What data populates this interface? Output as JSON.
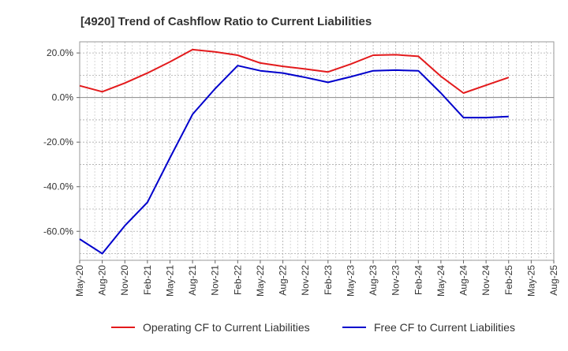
{
  "chart_data": {
    "type": "line",
    "title": "[4920]  Trend of Cashflow Ratio to Current Liabilities",
    "xlabel": "",
    "ylabel": "",
    "ylim": [
      -73,
      25
    ],
    "y_ticks": [
      20,
      0,
      -20,
      -40,
      -60
    ],
    "y_tick_labels": [
      "20.0%",
      "0.0%",
      "-20.0%",
      "-40.0%",
      "-60.0%"
    ],
    "categories": [
      "May-20",
      "Aug-20",
      "Nov-20",
      "Feb-21",
      "May-21",
      "Aug-21",
      "Nov-21",
      "Feb-22",
      "May-22",
      "Aug-22",
      "Nov-22",
      "Feb-23",
      "May-23",
      "Aug-23",
      "Nov-23",
      "Feb-24",
      "May-24",
      "Aug-24",
      "Nov-24",
      "Feb-25",
      "May-25",
      "Aug-25"
    ],
    "grid": true,
    "legend_position": "bottom",
    "series": [
      {
        "name": "Operating CF to Current Liabilities",
        "color": "#e31a1c",
        "values": [
          5.3,
          2.6,
          6.5,
          11.0,
          16.0,
          21.5,
          20.5,
          19.0,
          15.5,
          14.0,
          12.8,
          11.5,
          15.0,
          19.0,
          19.2,
          18.5,
          9.5,
          2.0,
          5.5,
          9.0,
          null,
          null
        ]
      },
      {
        "name": "Free CF to Current Liabilities",
        "color": "#0000cc",
        "values": [
          -63.5,
          -70.0,
          -57.5,
          -47.0,
          -27.0,
          -7.5,
          4.0,
          14.3,
          12.0,
          11.0,
          9.0,
          6.8,
          9.3,
          12.0,
          12.3,
          12.0,
          2.0,
          -9.0,
          -9.0,
          -8.5,
          null,
          null
        ]
      }
    ]
  }
}
